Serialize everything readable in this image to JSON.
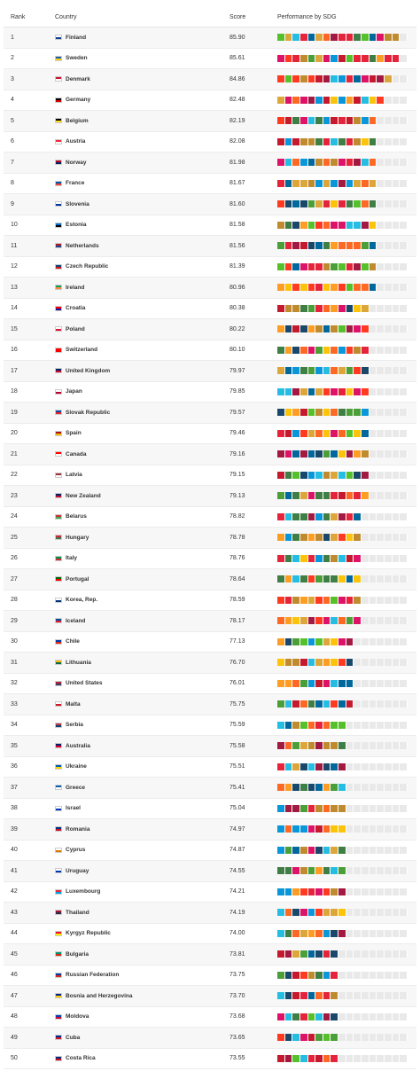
{
  "headers": {
    "rank": "Rank",
    "country": "Country",
    "score": "Score",
    "performance": "Performance by SDG"
  },
  "colors": {
    "red": "#e5243b",
    "orange": "#f7a325",
    "yellow": "#f5c243",
    "green": "#4c9f38",
    "darkgreen": "#3f7e44",
    "teal": "#2d8a9a",
    "blue": "#1b5f8c",
    "maroon": "#a21942",
    "grey": "#e9e9e9"
  },
  "rows": [
    {
      "rank": "1",
      "country": "Finland",
      "score": "85.90",
      "flag": [
        "#ffffff",
        "#0a3b8f"
      ]
    },
    {
      "rank": "2",
      "country": "Sweden",
      "score": "85.61",
      "flag": [
        "#1b5fa8",
        "#f8d010"
      ]
    },
    {
      "rank": "3",
      "country": "Denmark",
      "score": "84.86",
      "flag": [
        "#c8102e",
        "#ffffff"
      ]
    },
    {
      "rank": "4",
      "country": "Germany",
      "score": "82.48",
      "flag": [
        "#000000",
        "#dd0000"
      ]
    },
    {
      "rank": "5",
      "country": "Belgium",
      "score": "82.19",
      "flag": [
        "#000000",
        "#fdda24"
      ]
    },
    {
      "rank": "6",
      "country": "Austria",
      "score": "82.08",
      "flag": [
        "#ed2939",
        "#ffffff"
      ]
    },
    {
      "rank": "7",
      "country": "Norway",
      "score": "81.98",
      "flag": [
        "#ba0c2f",
        "#00205b"
      ]
    },
    {
      "rank": "8",
      "country": "France",
      "score": "81.67",
      "flag": [
        "#0055a4",
        "#ef4135"
      ]
    },
    {
      "rank": "9",
      "country": "Slovenia",
      "score": "81.60",
      "flag": [
        "#ffffff",
        "#0033a0"
      ]
    },
    {
      "rank": "10",
      "country": "Estonia",
      "score": "81.58",
      "flag": [
        "#0072ce",
        "#000000"
      ]
    },
    {
      "rank": "11",
      "country": "Netherlands",
      "score": "81.56",
      "flag": [
        "#ae1c28",
        "#21468b"
      ]
    },
    {
      "rank": "12",
      "country": "Czech Republic",
      "score": "81.39",
      "flag": [
        "#11457e",
        "#d7141a"
      ]
    },
    {
      "rank": "13",
      "country": "Ireland",
      "score": "80.96",
      "flag": [
        "#169b62",
        "#ff883e"
      ]
    },
    {
      "rank": "14",
      "country": "Croatia",
      "score": "80.38",
      "flag": [
        "#ff0000",
        "#171796"
      ]
    },
    {
      "rank": "15",
      "country": "Poland",
      "score": "80.22",
      "flag": [
        "#ffffff",
        "#dc143c"
      ]
    },
    {
      "rank": "16",
      "country": "Switzerland",
      "score": "80.10",
      "flag": [
        "#ff0000",
        "#ff0000"
      ]
    },
    {
      "rank": "17",
      "country": "United Kingdom",
      "score": "79.97",
      "flag": [
        "#012169",
        "#c8102e"
      ]
    },
    {
      "rank": "18",
      "country": "Japan",
      "score": "79.85",
      "flag": [
        "#ffffff",
        "#bc002d"
      ]
    },
    {
      "rank": "19",
      "country": "Slovak Republic",
      "score": "79.57",
      "flag": [
        "#0b4ea2",
        "#ee1c25"
      ]
    },
    {
      "rank": "20",
      "country": "Spain",
      "score": "79.46",
      "flag": [
        "#aa151b",
        "#f1bf00"
      ]
    },
    {
      "rank": "21",
      "country": "Canada",
      "score": "79.16",
      "flag": [
        "#ff0000",
        "#ffffff"
      ]
    },
    {
      "rank": "22",
      "country": "Latvia",
      "score": "79.15",
      "flag": [
        "#9e3039",
        "#ffffff"
      ]
    },
    {
      "rank": "23",
      "country": "New Zealand",
      "score": "79.13",
      "flag": [
        "#012169",
        "#c8102e"
      ]
    },
    {
      "rank": "24",
      "country": "Belarus",
      "score": "78.82",
      "flag": [
        "#c8313e",
        "#4aa657"
      ]
    },
    {
      "rank": "25",
      "country": "Hungary",
      "score": "78.78",
      "flag": [
        "#ce2939",
        "#477050"
      ]
    },
    {
      "rank": "26",
      "country": "Italy",
      "score": "78.76",
      "flag": [
        "#009246",
        "#ce2b37"
      ]
    },
    {
      "rank": "27",
      "country": "Portugal",
      "score": "78.64",
      "flag": [
        "#006600",
        "#ff0000"
      ]
    },
    {
      "rank": "28",
      "country": "Korea, Rep.",
      "score": "78.59",
      "flag": [
        "#ffffff",
        "#003478"
      ]
    },
    {
      "rank": "29",
      "country": "Iceland",
      "score": "78.17",
      "flag": [
        "#02529c",
        "#dc1e35"
      ]
    },
    {
      "rank": "30",
      "country": "Chile",
      "score": "77.13",
      "flag": [
        "#0039a6",
        "#d52b1e"
      ]
    },
    {
      "rank": "31",
      "country": "Lithuania",
      "score": "76.70",
      "flag": [
        "#fdb913",
        "#006a44"
      ]
    },
    {
      "rank": "32",
      "country": "United States",
      "score": "76.01",
      "flag": [
        "#b22234",
        "#3c3b6e"
      ]
    },
    {
      "rank": "33",
      "country": "Malta",
      "score": "75.75",
      "flag": [
        "#ffffff",
        "#cf142b"
      ]
    },
    {
      "rank": "34",
      "country": "Serbia",
      "score": "75.59",
      "flag": [
        "#c6363c",
        "#0c4076"
      ]
    },
    {
      "rank": "35",
      "country": "Australia",
      "score": "75.58",
      "flag": [
        "#012169",
        "#e4002b"
      ]
    },
    {
      "rank": "36",
      "country": "Ukraine",
      "score": "75.51",
      "flag": [
        "#0057b7",
        "#ffd700"
      ]
    },
    {
      "rank": "37",
      "country": "Greece",
      "score": "75.41",
      "flag": [
        "#0d5eaf",
        "#ffffff"
      ]
    },
    {
      "rank": "38",
      "country": "Israel",
      "score": "75.04",
      "flag": [
        "#ffffff",
        "#0038b8"
      ]
    },
    {
      "rank": "39",
      "country": "Romania",
      "score": "74.97",
      "flag": [
        "#002b7f",
        "#ce1126"
      ]
    },
    {
      "rank": "40",
      "country": "Cyprus",
      "score": "74.87",
      "flag": [
        "#ffffff",
        "#d57800"
      ]
    },
    {
      "rank": "41",
      "country": "Uruguay",
      "score": "74.55",
      "flag": [
        "#ffffff",
        "#0038a8"
      ]
    },
    {
      "rank": "42",
      "country": "Luxembourg",
      "score": "74.21",
      "flag": [
        "#ed2939",
        "#00a1de"
      ]
    },
    {
      "rank": "43",
      "country": "Thailand",
      "score": "74.19",
      "flag": [
        "#a51931",
        "#2d2a4a"
      ]
    },
    {
      "rank": "44",
      "country": "Kyrgyz Republic",
      "score": "74.00",
      "flag": [
        "#e8112d",
        "#ffef00"
      ]
    },
    {
      "rank": "45",
      "country": "Bulgaria",
      "score": "73.81",
      "flag": [
        "#00966e",
        "#d62612"
      ]
    },
    {
      "rank": "46",
      "country": "Russian Federation",
      "score": "73.75",
      "flag": [
        "#0039a6",
        "#d52b1e"
      ]
    },
    {
      "rank": "47",
      "country": "Bosnia and Herzegovina",
      "score": "73.70",
      "flag": [
        "#002395",
        "#fecb00"
      ]
    },
    {
      "rank": "48",
      "country": "Moldova",
      "score": "73.68",
      "flag": [
        "#0046ae",
        "#cc092f"
      ]
    },
    {
      "rank": "49",
      "country": "Cuba",
      "score": "73.65",
      "flag": [
        "#002a8f",
        "#cf142b"
      ]
    },
    {
      "rank": "50",
      "country": "Costa Rica",
      "score": "73.55",
      "flag": [
        "#002b7f",
        "#ce1126"
      ]
    }
  ]
}
